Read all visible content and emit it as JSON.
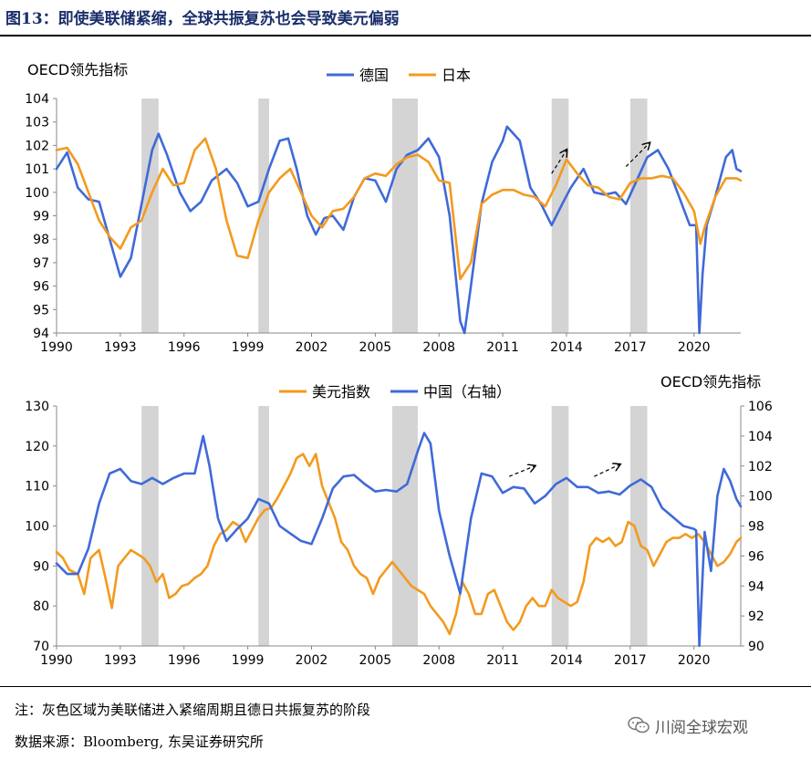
{
  "figure": {
    "title": "图13：即使美联储紧缩，全球共振复苏也会导致美元偏弱",
    "note": "注：灰色区域为美联储进入紧缩周期且德日共振复苏的阶段",
    "source": "数据来源：Bloomberg, 东吴证券研究所",
    "watermark": "川阅全球宏观"
  },
  "chart_data": [
    {
      "type": "line",
      "ylabel": "OECD领先指标",
      "xlim": [
        1990,
        2022.2
      ],
      "ylim": [
        94,
        104
      ],
      "yticks": [
        94,
        95,
        96,
        97,
        98,
        99,
        100,
        101,
        102,
        103,
        104
      ],
      "xticks": [
        1990,
        1993,
        1996,
        1999,
        2002,
        2005,
        2008,
        2011,
        2014,
        2017,
        2020
      ],
      "legend": "top-center",
      "shaded_periods": [
        [
          1994.0,
          1994.8
        ],
        [
          1999.5,
          2000.0
        ],
        [
          2005.8,
          2007.0
        ],
        [
          2013.3,
          2014.1
        ],
        [
          2017.0,
          2017.8
        ]
      ],
      "arrows": [
        [
          2013.3,
          100.8,
          2014.0,
          101.8
        ],
        [
          2016.8,
          101.1,
          2017.9,
          102.1
        ]
      ],
      "series": [
        {
          "name": "德国",
          "color": "#3f6ad8",
          "x": [
            1990,
            1990.5,
            1991,
            1991.5,
            1992,
            1992.5,
            1993,
            1993.5,
            1994,
            1994.5,
            1994.8,
            1995.2,
            1995.8,
            1996.3,
            1996.8,
            1997.3,
            1998,
            1998.5,
            1999,
            1999.5,
            2000,
            2000.5,
            2000.9,
            2001.3,
            2001.8,
            2002.2,
            2002.6,
            2003,
            2003.5,
            2004,
            2004.5,
            2005,
            2005.5,
            2006,
            2006.5,
            2007,
            2007.5,
            2008,
            2008.5,
            2009,
            2009.2,
            2009.5,
            2010,
            2010.5,
            2011,
            2011.2,
            2011.8,
            2012.3,
            2012.8,
            2013.3,
            2013.8,
            2014.2,
            2014.8,
            2015.3,
            2015.8,
            2016.3,
            2016.8,
            2017.3,
            2017.8,
            2018.3,
            2018.8,
            2019.3,
            2019.8,
            2020.1,
            2020.25,
            2020.4,
            2020.6,
            2021,
            2021.5,
            2021.8,
            2022,
            2022.2
          ],
          "y": [
            101.0,
            101.7,
            100.2,
            99.7,
            99.6,
            98.0,
            96.4,
            97.2,
            99.5,
            101.8,
            102.5,
            101.6,
            100.0,
            99.2,
            99.6,
            100.5,
            101.0,
            100.4,
            99.4,
            99.6,
            101.0,
            102.2,
            102.3,
            101.0,
            99.0,
            98.2,
            98.9,
            99.0,
            98.4,
            99.8,
            100.6,
            100.5,
            99.6,
            101.0,
            101.6,
            101.8,
            102.3,
            101.5,
            99.0,
            94.5,
            94.0,
            96.0,
            99.5,
            101.3,
            102.2,
            102.8,
            102.2,
            100.2,
            99.5,
            98.6,
            99.5,
            100.2,
            101.0,
            100.0,
            99.9,
            100.0,
            99.5,
            100.5,
            101.5,
            101.8,
            101.0,
            99.8,
            98.6,
            98.6,
            94.0,
            96.5,
            98.6,
            99.8,
            101.5,
            101.8,
            101.0,
            100.9
          ]
        },
        {
          "name": "日本",
          "color": "#f39a1e",
          "x": [
            1990,
            1990.5,
            1991,
            1991.5,
            1992,
            1992.5,
            1993,
            1993.5,
            1994,
            1994.5,
            1995,
            1995.5,
            1996,
            1996.5,
            1997,
            1997.5,
            1998,
            1998.5,
            1999,
            1999.5,
            2000,
            2000.5,
            2001,
            2001.5,
            2002,
            2002.5,
            2003,
            2003.5,
            2004,
            2004.5,
            2005,
            2005.5,
            2006,
            2006.5,
            2007,
            2007.5,
            2008,
            2008.5,
            2009,
            2009.5,
            2010,
            2010.5,
            2011,
            2011.5,
            2012,
            2012.5,
            2013,
            2013.5,
            2014,
            2014.5,
            2015,
            2015.5,
            2016,
            2016.5,
            2017,
            2017.5,
            2018,
            2018.5,
            2019,
            2019.5,
            2020,
            2020.3,
            2020.5,
            2021,
            2021.5,
            2022,
            2022.2
          ],
          "y": [
            101.8,
            101.9,
            101.2,
            100.0,
            98.8,
            98.1,
            97.6,
            98.5,
            98.8,
            100.0,
            101.0,
            100.3,
            100.4,
            101.8,
            102.3,
            101.0,
            98.8,
            97.3,
            97.2,
            98.8,
            100.0,
            100.6,
            101.0,
            100.0,
            99.0,
            98.5,
            99.2,
            99.3,
            99.8,
            100.6,
            100.8,
            100.7,
            101.2,
            101.5,
            101.6,
            101.3,
            100.5,
            100.4,
            96.3,
            97.0,
            99.5,
            99.9,
            100.1,
            100.1,
            99.9,
            99.8,
            99.4,
            100.3,
            101.4,
            100.8,
            100.3,
            100.2,
            99.8,
            99.7,
            100.4,
            100.6,
            100.6,
            100.7,
            100.6,
            100.0,
            99.2,
            97.8,
            98.5,
            99.8,
            100.6,
            100.6,
            100.5
          ]
        }
      ]
    },
    {
      "type": "line",
      "ylabel": "OECD领先指标",
      "xlim": [
        1990,
        2022.2
      ],
      "ylim": [
        70,
        130
      ],
      "y2lim": [
        90,
        106
      ],
      "yticks": [
        70,
        80,
        90,
        100,
        110,
        120,
        130
      ],
      "y2ticks": [
        90,
        92,
        94,
        96,
        98,
        100,
        102,
        104,
        106
      ],
      "xticks": [
        1990,
        1993,
        1996,
        1999,
        2002,
        2005,
        2008,
        2011,
        2014,
        2017,
        2020
      ],
      "legend": "top-center",
      "shaded_periods": [
        [
          1994.0,
          1994.8
        ],
        [
          1999.5,
          2000.0
        ],
        [
          2005.8,
          2007.0
        ],
        [
          2013.3,
          2014.1
        ],
        [
          2017.0,
          2017.8
        ]
      ],
      "arrows": [
        [
          2011.3,
          101.3,
          2012.5,
          102.0
        ],
        [
          2015.3,
          101.3,
          2016.5,
          102.1
        ]
      ],
      "series": [
        {
          "name": "美元指数",
          "color": "#f39a1e",
          "axis": "left",
          "x": [
            1990,
            1990.3,
            1990.6,
            1991,
            1991.3,
            1991.6,
            1992,
            1992.3,
            1992.6,
            1992.9,
            1993.2,
            1993.5,
            1993.8,
            1994.1,
            1994.4,
            1994.7,
            1995,
            1995.3,
            1995.6,
            1995.9,
            1996.2,
            1996.5,
            1996.8,
            1997.1,
            1997.4,
            1997.7,
            1998,
            1998.3,
            1998.6,
            1998.9,
            1999.2,
            1999.5,
            1999.8,
            2000.1,
            2000.4,
            2000.7,
            2001,
            2001.3,
            2001.6,
            2001.9,
            2002.2,
            2002.5,
            2002.8,
            2003.1,
            2003.4,
            2003.7,
            2004,
            2004.3,
            2004.6,
            2004.9,
            2005.2,
            2005.5,
            2005.8,
            2006.1,
            2006.4,
            2006.7,
            2007,
            2007.3,
            2007.6,
            2007.9,
            2008.2,
            2008.5,
            2008.8,
            2009.1,
            2009.4,
            2009.7,
            2010,
            2010.3,
            2010.6,
            2010.9,
            2011.2,
            2011.5,
            2011.8,
            2012.1,
            2012.4,
            2012.7,
            2013,
            2013.3,
            2013.6,
            2013.9,
            2014.2,
            2014.5,
            2014.8,
            2015.1,
            2015.4,
            2015.7,
            2016,
            2016.3,
            2016.6,
            2016.9,
            2017.2,
            2017.5,
            2017.8,
            2018.1,
            2018.4,
            2018.7,
            2019,
            2019.3,
            2019.6,
            2019.9,
            2020.2,
            2020.5,
            2020.8,
            2021.1,
            2021.4,
            2021.7,
            2022,
            2022.2
          ],
          "y": [
            93.5,
            92.0,
            89.0,
            88.0,
            83.0,
            92.0,
            94.0,
            87.0,
            79.5,
            90.0,
            92.0,
            94.0,
            93.0,
            92.0,
            90.0,
            86.0,
            88.0,
            82.0,
            83.0,
            85.0,
            85.5,
            87.0,
            88.0,
            90.0,
            95.0,
            98.0,
            99.0,
            101.0,
            100.0,
            96.0,
            99.0,
            102.0,
            104.0,
            104.5,
            107.0,
            110.0,
            113.0,
            117.0,
            118.0,
            115.0,
            118.0,
            110.0,
            106.0,
            102.0,
            96.0,
            94.0,
            90.0,
            88.0,
            87.0,
            83.0,
            87.0,
            89.0,
            91.0,
            89.0,
            87.0,
            85.0,
            84.0,
            83.0,
            80.0,
            78.0,
            76.0,
            73.0,
            78.0,
            86.0,
            83.0,
            78.0,
            78.0,
            83.0,
            84.0,
            80.0,
            76.0,
            74.0,
            76.0,
            80.0,
            82.0,
            80.0,
            80.0,
            84.0,
            82.0,
            81.0,
            80.0,
            81.0,
            86.0,
            95.0,
            97.0,
            96.0,
            97.0,
            95.0,
            96.0,
            101.0,
            100.0,
            95.0,
            94.0,
            90.0,
            93.0,
            96.0,
            97.0,
            97.0,
            98.0,
            97.0,
            98.0,
            96.0,
            93.0,
            90.0,
            91.0,
            93.0,
            96.0,
            97.0
          ]
        },
        {
          "name": "中国（右轴）",
          "color": "#3f6ad8",
          "axis": "right",
          "x": [
            1990,
            1990.5,
            1991,
            1991.5,
            1992,
            1992.5,
            1993,
            1993.5,
            1994,
            1994.5,
            1995,
            1995.5,
            1996,
            1996.5,
            1996.9,
            1997.2,
            1997.6,
            1998,
            1998.5,
            1999,
            1999.5,
            2000,
            2000.5,
            2001,
            2001.5,
            2002,
            2002.5,
            2003,
            2003.5,
            2004,
            2004.5,
            2005,
            2005.5,
            2006,
            2006.5,
            2007,
            2007.3,
            2007.6,
            2008,
            2008.5,
            2009,
            2009.5,
            2010,
            2010.5,
            2011,
            2011.5,
            2012,
            2012.5,
            2013,
            2013.5,
            2014,
            2014.5,
            2015,
            2015.5,
            2016,
            2016.5,
            2017,
            2017.5,
            2018,
            2018.5,
            2019,
            2019.5,
            2020,
            2020.1,
            2020.25,
            2020.5,
            2020.8,
            2021.1,
            2021.4,
            2021.7,
            2022,
            2022.2
          ],
          "y": [
            95.5,
            94.8,
            94.8,
            96.5,
            99.5,
            101.5,
            101.8,
            101.0,
            100.8,
            101.2,
            100.8,
            101.2,
            101.5,
            101.5,
            104.0,
            102.0,
            98.5,
            97.0,
            97.8,
            98.5,
            99.8,
            99.5,
            98.0,
            97.5,
            97.0,
            96.8,
            98.5,
            100.5,
            101.3,
            101.4,
            100.8,
            100.3,
            100.4,
            100.3,
            100.8,
            103.0,
            104.2,
            103.5,
            99.0,
            96.0,
            93.5,
            98.5,
            101.5,
            101.3,
            100.2,
            100.6,
            100.5,
            99.5,
            100.0,
            100.8,
            101.2,
            100.6,
            100.6,
            100.2,
            100.3,
            100.1,
            100.7,
            101.1,
            100.6,
            99.2,
            98.6,
            98.0,
            97.8,
            97.7,
            90.0,
            97.6,
            95.0,
            100.0,
            101.8,
            101.0,
            99.8,
            99.3
          ]
        }
      ]
    }
  ]
}
